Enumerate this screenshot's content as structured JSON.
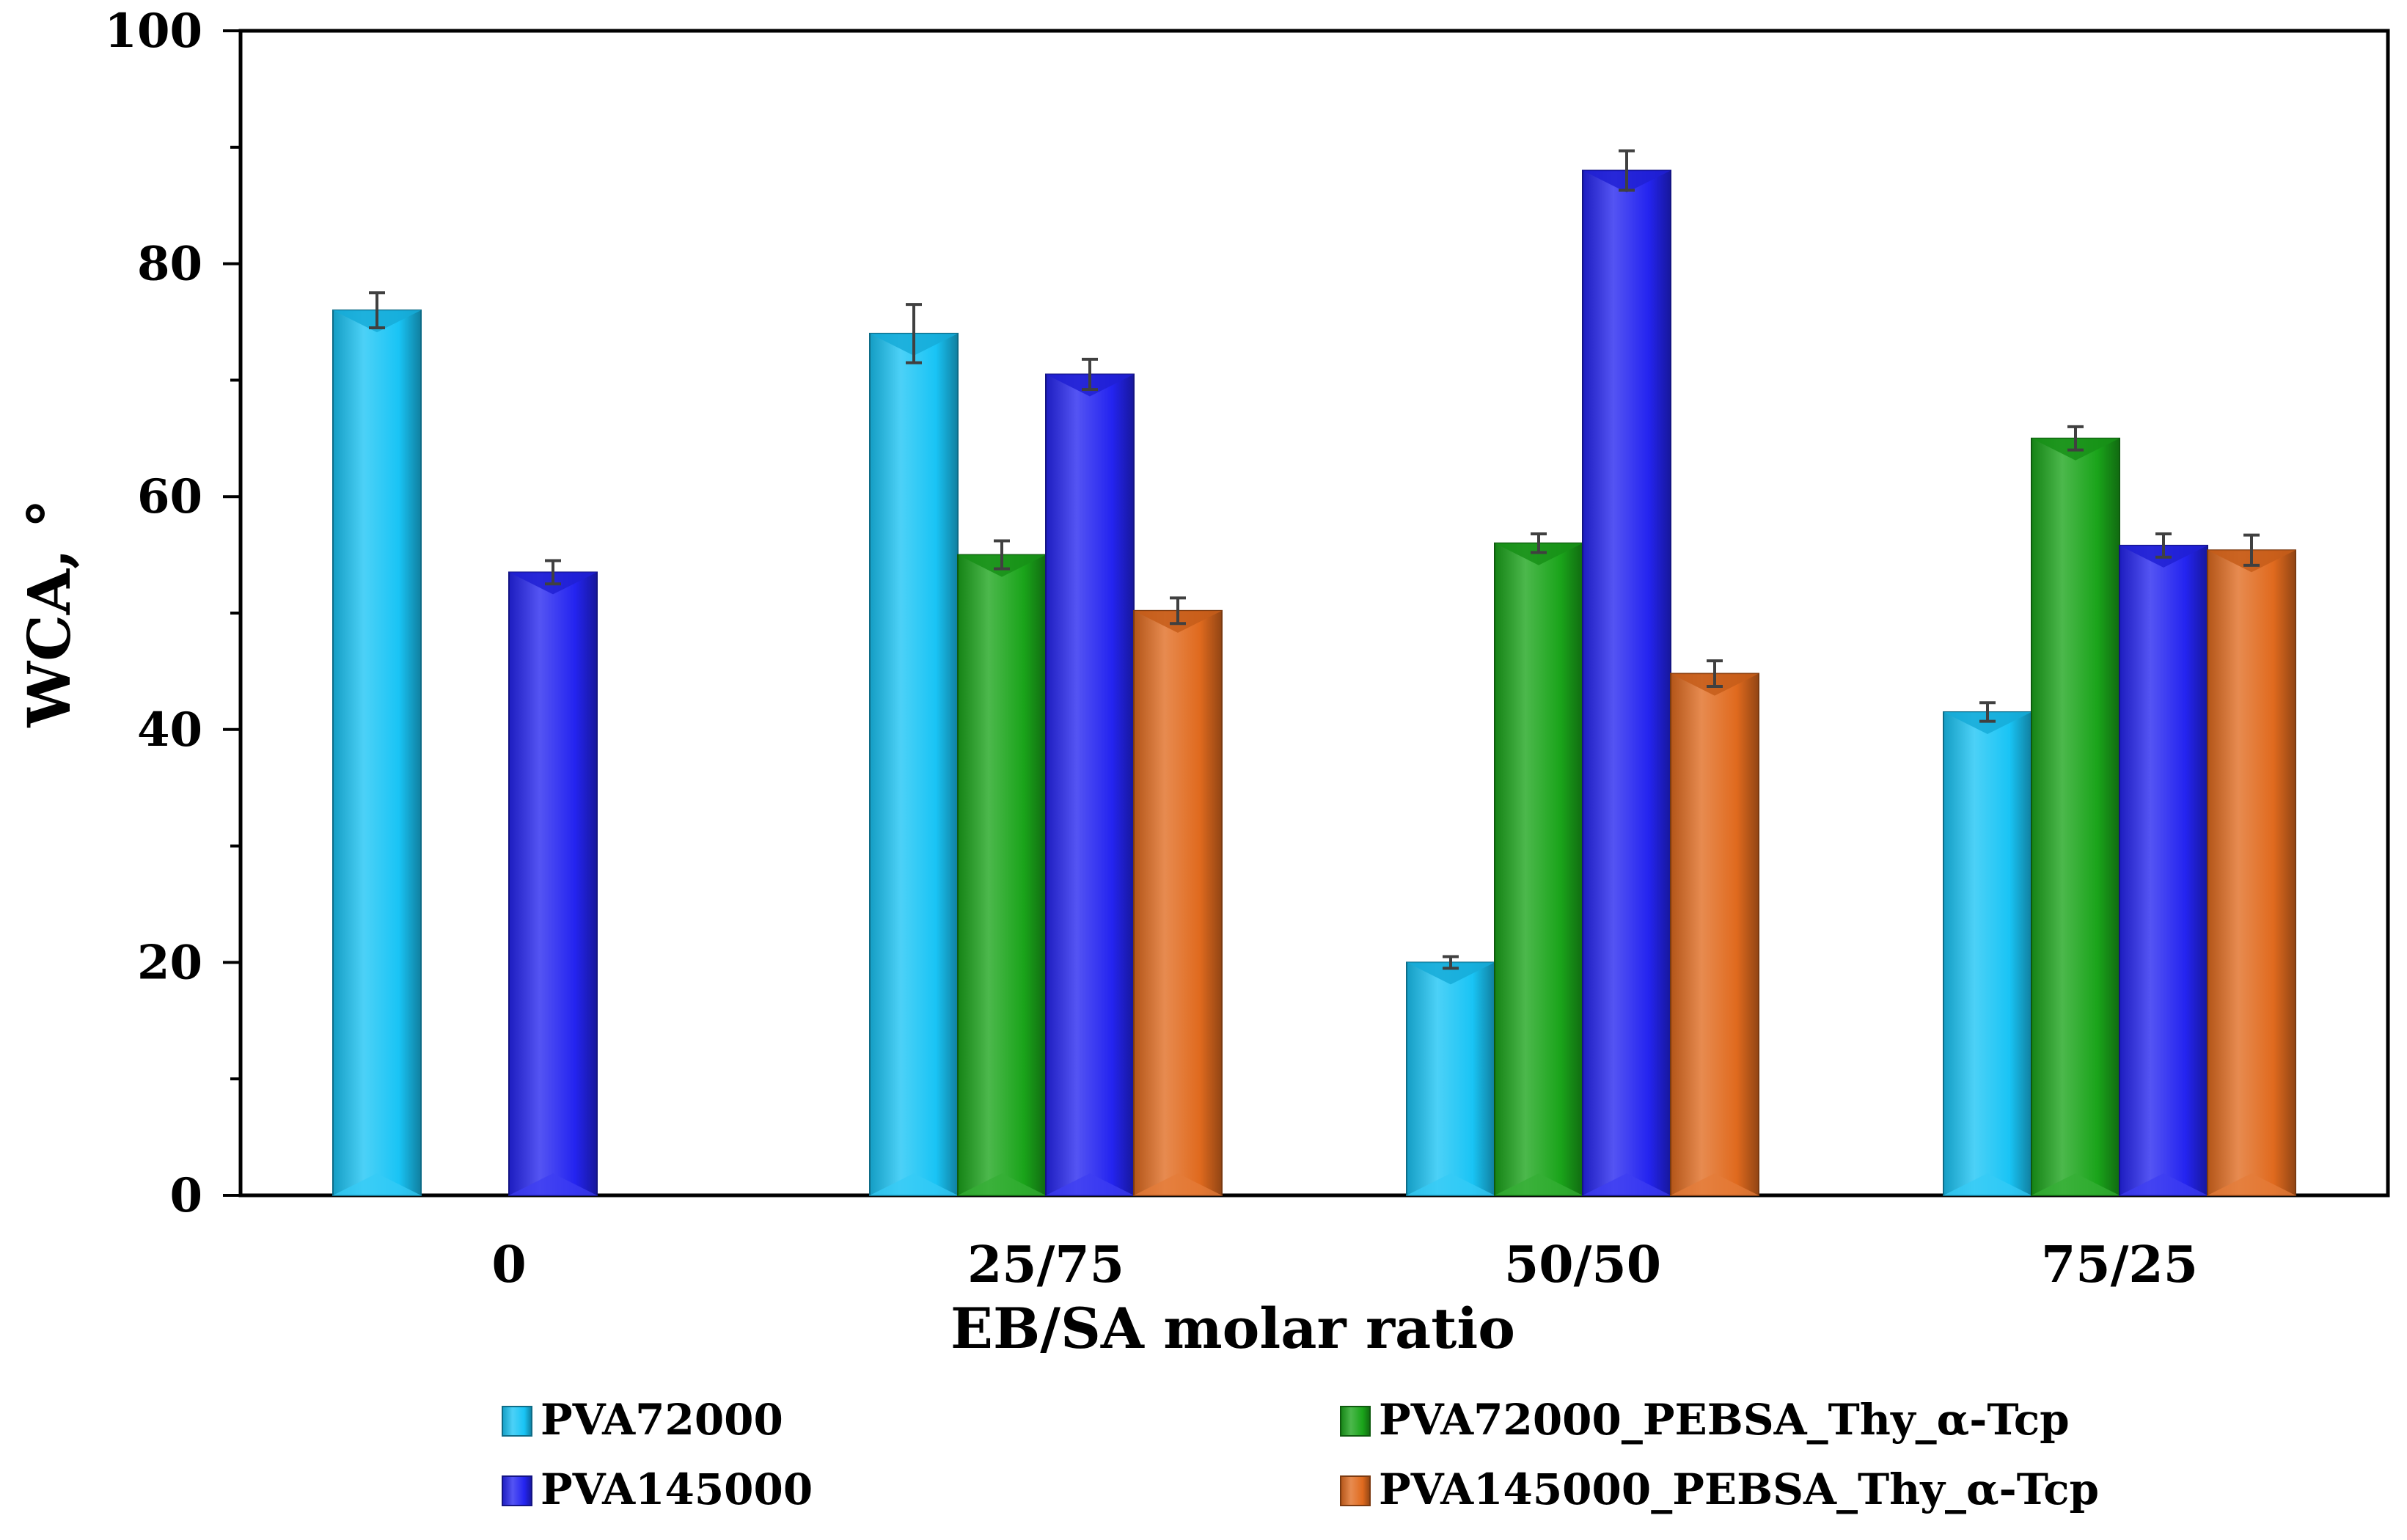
{
  "chart_data": {
    "type": "bar",
    "title": "",
    "xlabel": "EB/SA molar ratio",
    "ylabel": "WCA, °",
    "categories": [
      "0",
      "25/75",
      "50/50",
      "75/25"
    ],
    "ylim": [
      0,
      100
    ],
    "yticks": [
      "0",
      "20",
      "40",
      "60",
      "80",
      "100"
    ],
    "grid": false,
    "legend_position": "bottom",
    "series": [
      {
        "name": "PVA72000",
        "color": "#19c4f5",
        "values": [
          76,
          74,
          20,
          41.5
        ],
        "errors": [
          1.5,
          2.5,
          0.5,
          0.8
        ]
      },
      {
        "name": "PVA72000_PEBSA_Thy_α-Tcp",
        "color": "#1aa41a",
        "values": [
          null,
          55,
          56,
          65
        ],
        "errors": [
          null,
          1.2,
          0.8,
          1.0
        ]
      },
      {
        "name": "PVA145000",
        "color": "#2424f0",
        "values": [
          53.5,
          70.5,
          88,
          55.8
        ],
        "errors": [
          1.0,
          1.3,
          1.7,
          1.0
        ]
      },
      {
        "name": "PVA145000_PEBSA_Thy_α-Tcp",
        "color": "#e06a1e",
        "values": [
          null,
          50.2,
          44.8,
          55.4
        ],
        "errors": [
          null,
          1.1,
          1.1,
          1.3
        ]
      }
    ]
  }
}
